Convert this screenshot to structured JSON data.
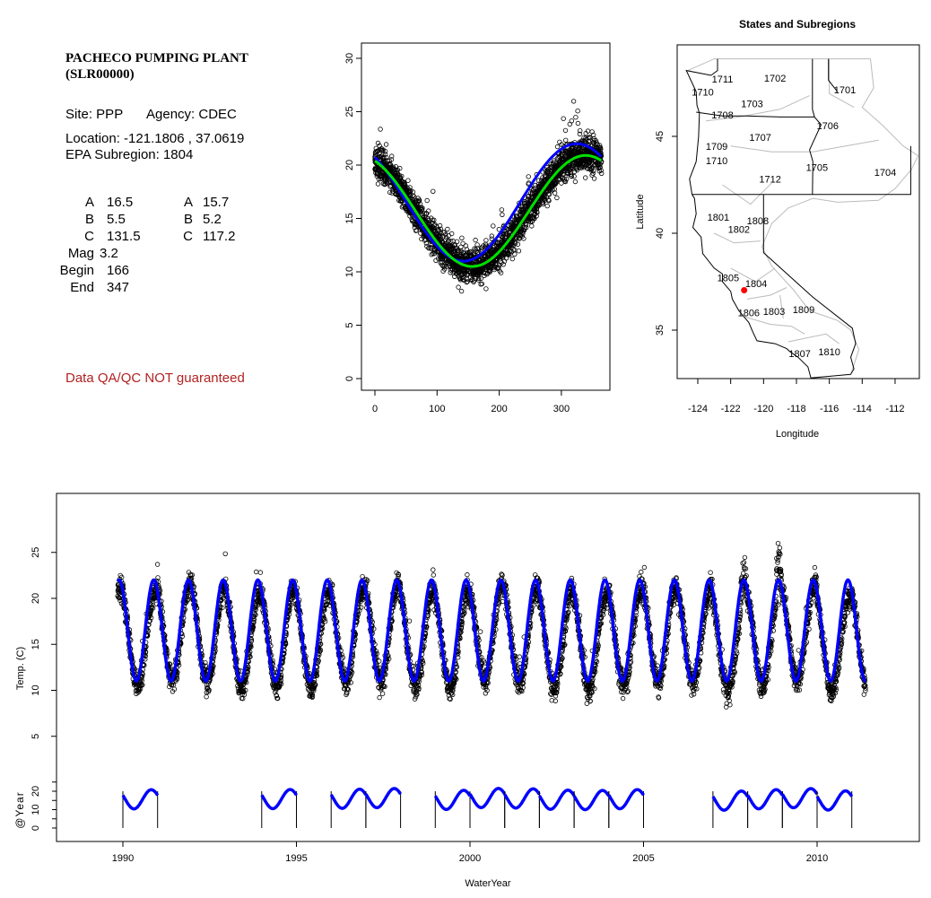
{
  "info": {
    "title_line1": "PACHECO PUMPING PLANT",
    "title_line2": "(SLR00000)",
    "site": "Site: PPP",
    "agency": "Agency: CDEC",
    "location": "Location: -121.1806 , 37.0619",
    "subregion": "EPA Subregion: 1804",
    "params_left": [
      {
        "label": "A",
        "value": "16.5"
      },
      {
        "label": "B",
        "value": "5.5"
      },
      {
        "label": "C",
        "value": "131.5"
      },
      {
        "label": "Mag",
        "value": "3.2"
      },
      {
        "label": "Begin",
        "value": "166"
      },
      {
        "label": "End",
        "value": "347"
      }
    ],
    "params_right": [
      {
        "label": "A",
        "value": "15.7"
      },
      {
        "label": "B",
        "value": "5.2"
      },
      {
        "label": "C",
        "value": "117.2"
      }
    ],
    "qa_note": "Data QA/QC NOT guaranteed"
  },
  "chart_data": [
    {
      "type": "scatter",
      "title": "",
      "xlabel": "",
      "ylabel": "",
      "xlim": [
        -5,
        380
      ],
      "ylim": [
        -1,
        31
      ],
      "xticks": [
        0,
        100,
        200,
        300
      ],
      "yticks": [
        0,
        5,
        10,
        15,
        20,
        25,
        30
      ],
      "series": [
        {
          "kind": "points",
          "marker": "open-circle",
          "color": "#000000",
          "note": "daily temperature vs day of water year, 1990-2011"
        },
        {
          "kind": "line",
          "color": "#0000ff",
          "model": {
            "A": 16.5,
            "B": 5.5,
            "C": 131.5
          }
        },
        {
          "kind": "line",
          "color": "#00e000",
          "model": {
            "A": 15.7,
            "B": 5.2,
            "C": 117.2
          }
        }
      ]
    },
    {
      "type": "map",
      "title": "States and Subregions",
      "xlabel": "Longitude",
      "ylabel": "Latitude",
      "xlim": [
        -125.2,
        -110.4
      ],
      "ylim": [
        32.3,
        49.7
      ],
      "xticks": [
        "-124",
        "-122",
        "-120",
        "-118",
        "-116",
        "-114",
        "-112"
      ],
      "yticks": [
        "35",
        "40",
        "45"
      ],
      "station": {
        "lon": -121.1806,
        "lat": 37.0619,
        "color": "#ff0000"
      },
      "subregion_labels": [
        {
          "text": "1711",
          "lon": -122.5,
          "lat": 47.96
        },
        {
          "text": "1710",
          "lon": -123.7,
          "lat": 47.3
        },
        {
          "text": "1708",
          "lon": -122.5,
          "lat": 46.1
        },
        {
          "text": "1703",
          "lon": -120.7,
          "lat": 46.7
        },
        {
          "text": "1702",
          "lon": -119.3,
          "lat": 48.0
        },
        {
          "text": "1701",
          "lon": -115.05,
          "lat": 47.4
        },
        {
          "text": "1706",
          "lon": -116.1,
          "lat": 45.55
        },
        {
          "text": "1707",
          "lon": -120.2,
          "lat": 44.95
        },
        {
          "text": "1709",
          "lon": -122.85,
          "lat": 44.5
        },
        {
          "text": "1710",
          "lon": -122.85,
          "lat": 43.75
        },
        {
          "text": "1705",
          "lon": -116.75,
          "lat": 43.4
        },
        {
          "text": "1704",
          "lon": -112.6,
          "lat": 43.15
        },
        {
          "text": "1712",
          "lon": -119.6,
          "lat": 42.8
        },
        {
          "text": "1801",
          "lon": -122.75,
          "lat": 40.83
        },
        {
          "text": "1808",
          "lon": -120.35,
          "lat": 40.65
        },
        {
          "text": "1802",
          "lon": -121.5,
          "lat": 40.2
        },
        {
          "text": "1805",
          "lon": -122.15,
          "lat": 37.7
        },
        {
          "text": "1804",
          "lon": -120.45,
          "lat": 37.4
        },
        {
          "text": "1806",
          "lon": -120.9,
          "lat": 35.9
        },
        {
          "text": "1803",
          "lon": -119.36,
          "lat": 35.97
        },
        {
          "text": "1809",
          "lon": -117.56,
          "lat": 36.06
        },
        {
          "text": "1807",
          "lon": -117.8,
          "lat": 33.8
        },
        {
          "text": "1810",
          "lon": -116.0,
          "lat": 33.9
        }
      ]
    },
    {
      "type": "line",
      "title": "",
      "xlabel": "WaterYear",
      "ylabel": "Temp. (C)",
      "ylabel_lower": "@Year",
      "xlim": [
        1988.1,
        2012.9
      ],
      "xticks": [
        "1990",
        "1995",
        "2000",
        "2005",
        "2010"
      ],
      "yticks": [
        "5",
        "10",
        "15",
        "20",
        "25"
      ],
      "yticks_lower": [
        "0",
        "10",
        "20"
      ],
      "data_range": [
        1989.85,
        2011.4
      ],
      "series": [
        {
          "kind": "points",
          "marker": "open-circle",
          "color": "#000000",
          "note": "daily temperature"
        },
        {
          "kind": "line",
          "color": "#0000ff",
          "model": {
            "A": 16.5,
            "B": 5.5,
            "C": 131.5
          }
        }
      ],
      "annual_fit_years": [
        1990,
        1994,
        1996,
        1997,
        1999,
        2000,
        2001,
        2002,
        2003,
        2004,
        2007,
        2008,
        2009,
        2010
      ]
    }
  ]
}
